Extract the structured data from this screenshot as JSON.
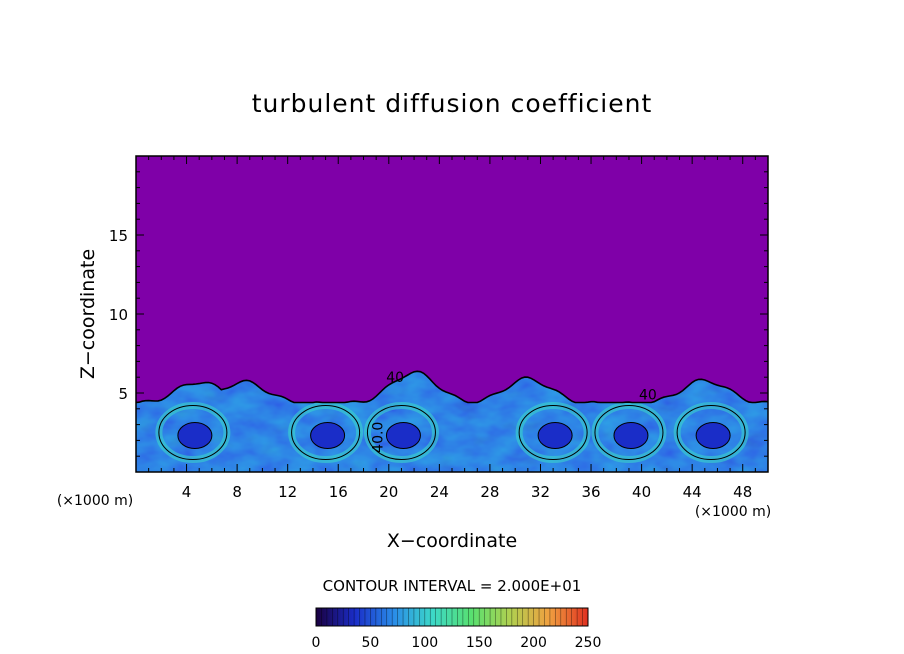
{
  "chart_data": {
    "type": "heatmap",
    "title": "turbulent diffusion coefficient",
    "xlabel": "X−coordinate",
    "ylabel": "Z−coordinate",
    "x_unit_left": "(×1000 m)",
    "x_unit_right": "(×1000 m)",
    "xlim": [
      0,
      50
    ],
    "ylim": [
      0,
      20
    ],
    "x_ticks": [
      "4",
      "8",
      "12",
      "16",
      "20",
      "24",
      "28",
      "32",
      "36",
      "40",
      "44",
      "48"
    ],
    "y_ticks": [
      "5",
      "10",
      "15"
    ],
    "contour_interval_text": "CONTOUR INTERVAL = 2.000E+01",
    "contour_labels": [
      "40",
      "40.0",
      "40"
    ],
    "colorbar": {
      "min": 0,
      "max": 250,
      "tick_labels": [
        "0",
        "50",
        "100",
        "150",
        "200",
        "250"
      ],
      "colors": [
        "#1a0040",
        "#1a2dc8",
        "#2a8ce8",
        "#3cd8c8",
        "#58e070",
        "#b0d050",
        "#f0a040",
        "#e03020"
      ]
    },
    "background_color": "#7f00a8",
    "turbulent_layer_top_km": 5.5,
    "plume_tops_km": [
      {
        "x": 5,
        "z": 5.7
      },
      {
        "x": 8.5,
        "z": 5.7
      },
      {
        "x": 22,
        "z": 6.3
      },
      {
        "x": 31,
        "z": 5.9
      },
      {
        "x": 45,
        "z": 5.8
      }
    ]
  }
}
